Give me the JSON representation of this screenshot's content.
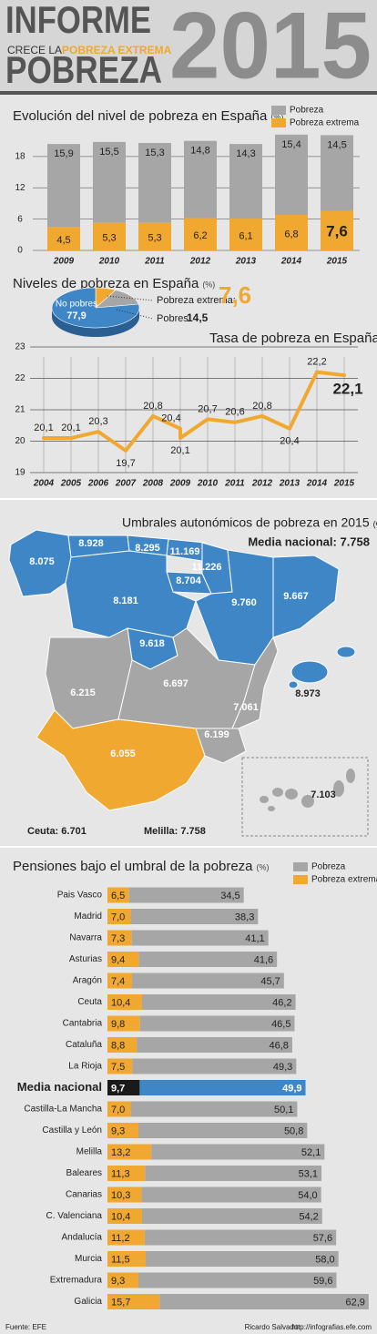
{
  "header": {
    "title_top": "INFORME",
    "subtitle_prefix": "CRECE LA",
    "subtitle_highlight": "POBREZA EXTREMA",
    "title_bottom": "POBREZA",
    "year": "2015"
  },
  "chart_data": [
    {
      "type": "bar",
      "stacked": true,
      "title": "Evolución del nivel de pobreza en España",
      "unit": "(%)",
      "categories": [
        "2009",
        "2010",
        "2011",
        "2012",
        "2013",
        "2014",
        "2015"
      ],
      "series": [
        {
          "name": "Pobreza",
          "color": "#a6a6a6",
          "values": [
            15.9,
            15.5,
            15.3,
            14.8,
            14.3,
            15.4,
            14.5
          ],
          "value_labels": [
            "15,9",
            "15,5",
            "15,3",
            "14,8",
            "14,3",
            "15,4",
            "14,5"
          ]
        },
        {
          "name": "Pobreza extrema",
          "color": "#f0a830",
          "values": [
            4.5,
            5.3,
            5.3,
            6.2,
            6.1,
            6.8,
            7.6
          ],
          "value_labels": [
            "4,5",
            "5,3",
            "5,3",
            "6,2",
            "6,1",
            "6,8",
            "7,6"
          ]
        }
      ],
      "ylim": [
        0,
        22
      ],
      "yticks": [
        0,
        6,
        12,
        18
      ],
      "grid": true,
      "legend": "top-right"
    },
    {
      "type": "pie",
      "title": "Niveles de pobreza en España",
      "unit": "(%)",
      "categories": [
        "Pobreza extrema:",
        "Pobres:",
        "No pobres"
      ],
      "values": [
        7.6,
        14.5,
        77.9
      ],
      "value_labels": [
        "7,6",
        "14,5",
        "77,9"
      ],
      "colors": [
        "#f0a830",
        "#a6a6a6",
        "#3f86c6"
      ]
    },
    {
      "type": "line",
      "title": "Tasa de pobreza en España",
      "unit": "(%)",
      "x": [
        2004,
        2005,
        2006,
        2007,
        2008,
        2009,
        2009,
        2010,
        2011,
        2012,
        2013,
        2014,
        2015
      ],
      "values": [
        20.1,
        20.1,
        20.3,
        19.7,
        20.8,
        20.4,
        20.1,
        20.7,
        20.6,
        20.8,
        20.4,
        22.2,
        22.1
      ],
      "value_labels": [
        "20,1",
        "20,1",
        "20,3",
        "19,7",
        "20,8",
        "20,4",
        "20,1",
        "20,7",
        "20,6",
        "20,8",
        "20,4",
        "22,2",
        "22,1"
      ],
      "color": "#f0a830",
      "xlim": [
        2003.5,
        2015.5
      ],
      "xticks": [
        2004,
        2005,
        2006,
        2007,
        2008,
        2009,
        2010,
        2011,
        2012,
        2013,
        2014,
        2015
      ],
      "ylim": [
        19,
        23
      ],
      "yticks": [
        19,
        20,
        21,
        22,
        23
      ],
      "grid": true
    },
    {
      "type": "hbar",
      "stacked": true,
      "title": "Pensiones bajo el umbral de la pobreza",
      "unit": "(%)",
      "categories": [
        "Pais Vasco",
        "Madrid",
        "Navarra",
        "Asturias",
        "Aragón",
        "Ceuta",
        "Cantabria",
        "Cataluña",
        "La Rioja",
        "Media nacional",
        "Castilla-La Mancha",
        "Castilla y León",
        "Melilla",
        "Baleares",
        "Canarias",
        "C. Valenciana",
        "Andalucía",
        "Murcia",
        "Extremadura",
        "Galicia"
      ],
      "series": [
        {
          "name": "Pobreza",
          "color": "#a6a6a6",
          "values": [
            34.5,
            38.3,
            41.1,
            41.6,
            45.7,
            46.2,
            46.5,
            46.8,
            49.3,
            49.9,
            50.1,
            50.8,
            52.1,
            53.1,
            54.0,
            54.2,
            57.6,
            58.0,
            59.6,
            62.9
          ],
          "value_labels": [
            "34,5",
            "38,3",
            "41,1",
            "41,6",
            "45,7",
            "46,2",
            "46,5",
            "46,8",
            "49,3",
            "49,9",
            "50,1",
            "50,8",
            "52,1",
            "53,1",
            "54,0",
            "54,2",
            "57,6",
            "58,0",
            "59,6",
            "62,9"
          ]
        },
        {
          "name": "Pobreza extrema",
          "color": "#f0a830",
          "values": [
            6.5,
            7.0,
            7.3,
            9.4,
            7.4,
            10.4,
            9.8,
            8.8,
            7.5,
            9.7,
            7.0,
            9.3,
            13.2,
            11.3,
            10.3,
            10.4,
            11.2,
            11.5,
            9.3,
            15.7
          ],
          "value_labels": [
            "6,5",
            "7,0",
            "7,3",
            "9,4",
            "7,4",
            "10,4",
            "9,8",
            "8,8",
            "7,5",
            "9,7",
            "7,0",
            "9,3",
            "13,2",
            "11,3",
            "10,3",
            "10,4",
            "11,2",
            "11,5",
            "9,3",
            "15,7"
          ]
        }
      ],
      "xlim": [
        0,
        80
      ],
      "highlight": 9,
      "highlight_colors": [
        "#3f86c6",
        "#1a1a1a"
      ],
      "legend": "top-right"
    }
  ],
  "map": {
    "title": "Umbrales autonómicos de pobreza en 2015",
    "unit": "(€)",
    "national": "Media nacional: 7.758",
    "regions": [
      "8.075",
      "8.928",
      "8.295",
      "11.169",
      "11.226",
      "8.704",
      "8.181",
      "9.760",
      "9.667",
      "9.618",
      "8.973",
      "6.215",
      "6.697",
      "7.061",
      "6.199",
      "6.055",
      "7.103"
    ],
    "ceuta": "Ceuta: 6.701",
    "melilla": "Melilla: 7.758"
  },
  "footer": {
    "source": "Fuente: EFE",
    "author": "Ricardo Salvador",
    "url": "http://infografias.efe.com"
  }
}
